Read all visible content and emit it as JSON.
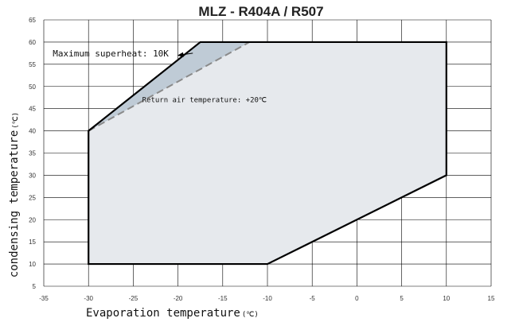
{
  "chart_data": {
    "type": "area",
    "title": "MLZ - R404A / R507",
    "xlabel": "Evaporation temperature",
    "xlabel_unit": "(℃)",
    "ylabel": "condensing temperature",
    "ylabel_unit": "(℃)",
    "xlim": [
      -35,
      15
    ],
    "ylim": [
      5,
      65
    ],
    "x_ticks": [
      -35,
      -30,
      -25,
      -20,
      -15,
      -10,
      -5,
      0,
      5,
      10,
      15
    ],
    "y_ticks": [
      5,
      10,
      15,
      20,
      25,
      30,
      35,
      40,
      45,
      50,
      55,
      60,
      65
    ],
    "grid": true,
    "envelope": {
      "x": [
        -30,
        -30,
        -17.5,
        10,
        10,
        -10,
        -30
      ],
      "y": [
        10,
        40,
        60,
        60,
        30,
        10,
        10
      ]
    },
    "superheat_boundary": {
      "x": [
        -30,
        -12
      ],
      "y": [
        40,
        60
      ]
    },
    "annotations": [
      {
        "text": "Maximum superheat: 10K",
        "x": -34,
        "y": 57.5
      },
      {
        "text": "Return air temperature: +20℃",
        "x": -24,
        "y": 47
      }
    ],
    "colors": {
      "envelope_fill": "#e6e9ed",
      "superheat_fill": "#bfcbd6",
      "outline": "#000000",
      "dashed_line": "#8a8a8a",
      "grid": "#000000"
    }
  }
}
